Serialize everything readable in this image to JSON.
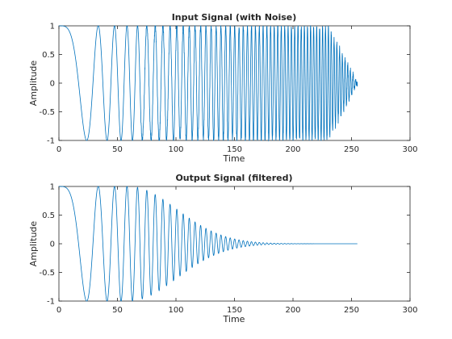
{
  "chart_data": [
    {
      "type": "line",
      "title": "Input Signal (with Noise)",
      "xlabel": "Time",
      "ylabel": "Amplitude",
      "xlim": [
        0,
        300
      ],
      "ylim": [
        -1,
        1
      ],
      "xticks": [
        0,
        50,
        100,
        150,
        200,
        250,
        300
      ],
      "yticks": [
        1,
        0.5,
        0,
        -0.5,
        -1
      ],
      "ytick_labels": [
        "1",
        "0.5",
        "0",
        "-0.5",
        "-1"
      ],
      "grid": false,
      "series": [
        {
          "color": "#0072bd",
          "signal": "chirp with added noise, frequency increasing with time; amplitude ~1 up to ~230 then decaying to ~0 at 255",
          "x_range": [
            0,
            255
          ],
          "samples": 256
        }
      ]
    },
    {
      "type": "line",
      "title": "Output Signal (filtered)",
      "xlabel": "Time",
      "ylabel": "Amplitude",
      "xlim": [
        0,
        300
      ],
      "ylim": [
        -1,
        1
      ],
      "xticks": [
        0,
        50,
        100,
        150,
        200,
        250,
        300
      ],
      "yticks": [
        1,
        0.5,
        0,
        -0.5,
        -1
      ],
      "ytick_labels": [
        "1",
        "0.5",
        "0",
        "-0.5",
        "-1"
      ],
      "grid": false,
      "series": [
        {
          "color": "#0072bd",
          "signal": "filtered chirp, amplitude ~1 up to ~60 then decaying toward 0 by ~230",
          "x_range": [
            0,
            255
          ],
          "samples": 256
        }
      ]
    }
  ]
}
